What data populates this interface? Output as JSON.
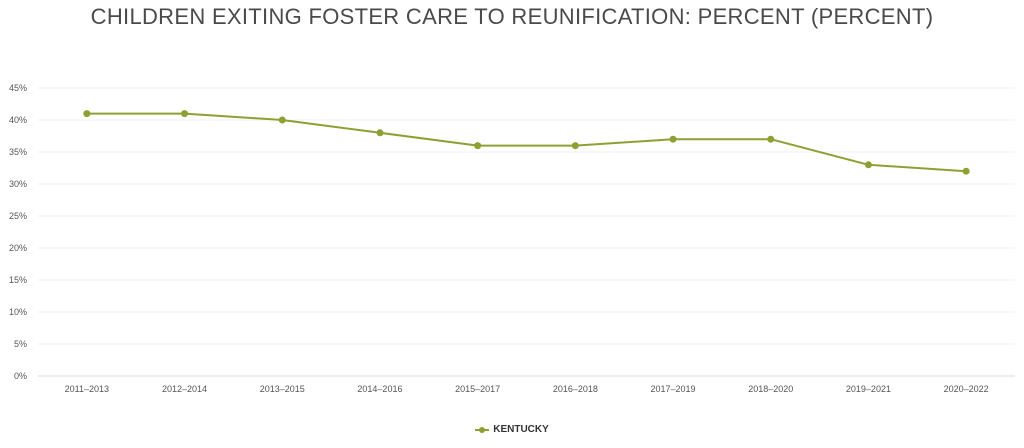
{
  "chart_data": {
    "type": "line",
    "title": "CHILDREN EXITING FOSTER CARE TO REUNIFICATION: PERCENT (PERCENT)",
    "categories": [
      "2011–2013",
      "2012–2014",
      "2013–2015",
      "2014–2016",
      "2015–2017",
      "2016–2018",
      "2017–2019",
      "2018–2020",
      "2019–2021",
      "2020–2022"
    ],
    "series": [
      {
        "name": "KENTUCKY",
        "color": "#8da133",
        "values": [
          41,
          41,
          40,
          38,
          36,
          36,
          37,
          37,
          33,
          32
        ]
      }
    ],
    "ylim": [
      0,
      45
    ],
    "yticks": [
      0,
      5,
      10,
      15,
      20,
      25,
      30,
      35,
      40,
      45
    ],
    "ytick_suffix": "%",
    "xlabel": "",
    "ylabel": "",
    "grid": true,
    "legend_position": "bottom-center"
  }
}
